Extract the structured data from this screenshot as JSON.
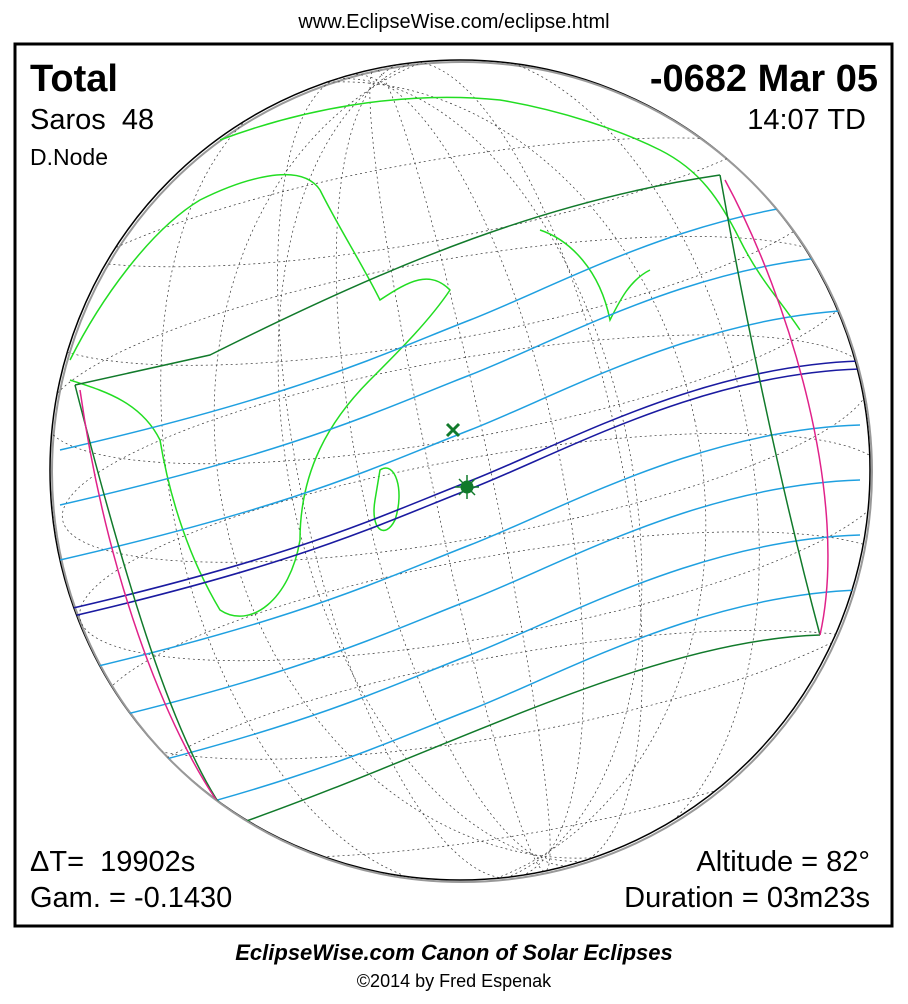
{
  "header": {
    "url": "www.EclipseWise.com/eclipse.html"
  },
  "eclipse": {
    "type": "Total",
    "date": "-0682 Mar 05",
    "saros": "Saros  48",
    "time": "14:07 TD",
    "node": "D.Node",
    "delta_t": "ΔT=  19902s",
    "gamma": "Gam. = -0.1430",
    "altitude": "Altitude = 82°",
    "duration": "Duration = 03m23s"
  },
  "footer": {
    "title": "EclipseWise.com Canon of Solar Eclipses",
    "copyright": "©2014 by Fred Espenak"
  }
}
